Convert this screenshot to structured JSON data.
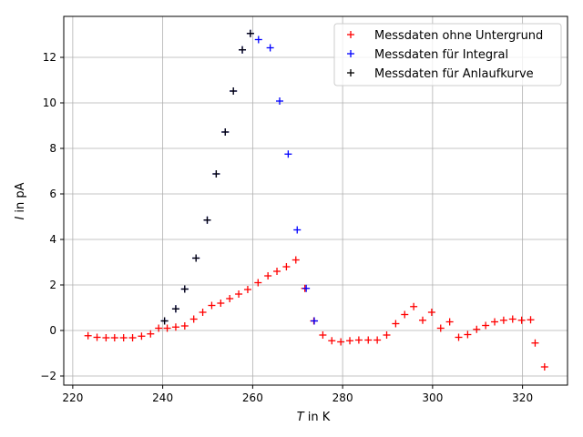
{
  "chart_data": {
    "type": "scatter",
    "xlabel": "T in K",
    "ylabel": "I in pA",
    "xlim": [
      218,
      330
    ],
    "ylim": [
      -2.4,
      13.8
    ],
    "xticks": [
      220,
      240,
      260,
      280,
      300,
      320
    ],
    "yticks": [
      -2,
      0,
      2,
      4,
      6,
      8,
      10,
      12
    ],
    "xtick_labels": [
      "220",
      "240",
      "260",
      "280",
      "300",
      "320"
    ],
    "ytick_labels": [
      "−2",
      "0",
      "2",
      "4",
      "6",
      "8",
      "10",
      "12"
    ],
    "grid": true,
    "marker": "+",
    "legend_position": "top-right",
    "series": [
      {
        "name": "Messdaten ohne Untergrund",
        "color": "#ff0000",
        "x": [
          223.4,
          225.4,
          227.4,
          229.3,
          231.3,
          233.3,
          235.3,
          237.3,
          239.1,
          241.0,
          242.9,
          244.9,
          246.9,
          248.9,
          250.9,
          252.9,
          254.9,
          256.9,
          258.9,
          261.2,
          263.4,
          265.4,
          267.5,
          269.6,
          271.6,
          273.6,
          275.6,
          277.6,
          279.6,
          281.6,
          283.6,
          285.7,
          287.7,
          289.8,
          291.8,
          293.8,
          295.8,
          297.8,
          299.8,
          301.8,
          303.8,
          305.8,
          307.8,
          309.8,
          311.8,
          313.8,
          315.8,
          317.8,
          319.8,
          321.8,
          322.8,
          324.9
        ],
        "y": [
          -0.23,
          -0.3,
          -0.32,
          -0.32,
          -0.32,
          -0.32,
          -0.25,
          -0.15,
          0.1,
          0.1,
          0.15,
          0.2,
          0.5,
          0.8,
          1.1,
          1.2,
          1.4,
          1.6,
          1.8,
          2.1,
          2.4,
          2.6,
          2.8,
          3.1,
          1.85,
          0.42,
          -0.2,
          -0.45,
          -0.5,
          -0.45,
          -0.42,
          -0.42,
          -0.42,
          -0.2,
          0.3,
          0.7,
          1.05,
          0.45,
          0.8,
          0.1,
          0.38,
          -0.3,
          -0.18,
          0.05,
          0.22,
          0.38,
          0.45,
          0.5,
          0.45,
          0.47,
          -0.55,
          -1.6
        ]
      },
      {
        "name": "Messdaten für Integral",
        "color": "#0000ff",
        "x": [
          240.4,
          242.9,
          244.9,
          247.4,
          249.9,
          251.9,
          253.9,
          255.7,
          257.7,
          259.5,
          261.3,
          263.9,
          266.0,
          267.9,
          269.9,
          271.9,
          273.7
        ],
        "y": [
          0.42,
          0.95,
          1.82,
          3.18,
          4.85,
          6.88,
          8.72,
          10.52,
          12.33,
          13.05,
          12.78,
          12.42,
          10.08,
          7.75,
          4.42,
          1.85,
          0.42
        ]
      },
      {
        "name": "Messdaten für Anlaufkurve",
        "color": "#000000",
        "x": [
          240.4,
          242.9,
          244.9,
          247.4,
          249.9,
          251.9,
          253.9,
          255.7,
          257.7,
          259.5
        ],
        "y": [
          0.42,
          0.95,
          1.82,
          3.18,
          4.85,
          6.88,
          8.72,
          10.52,
          12.33,
          13.05
        ]
      }
    ]
  }
}
